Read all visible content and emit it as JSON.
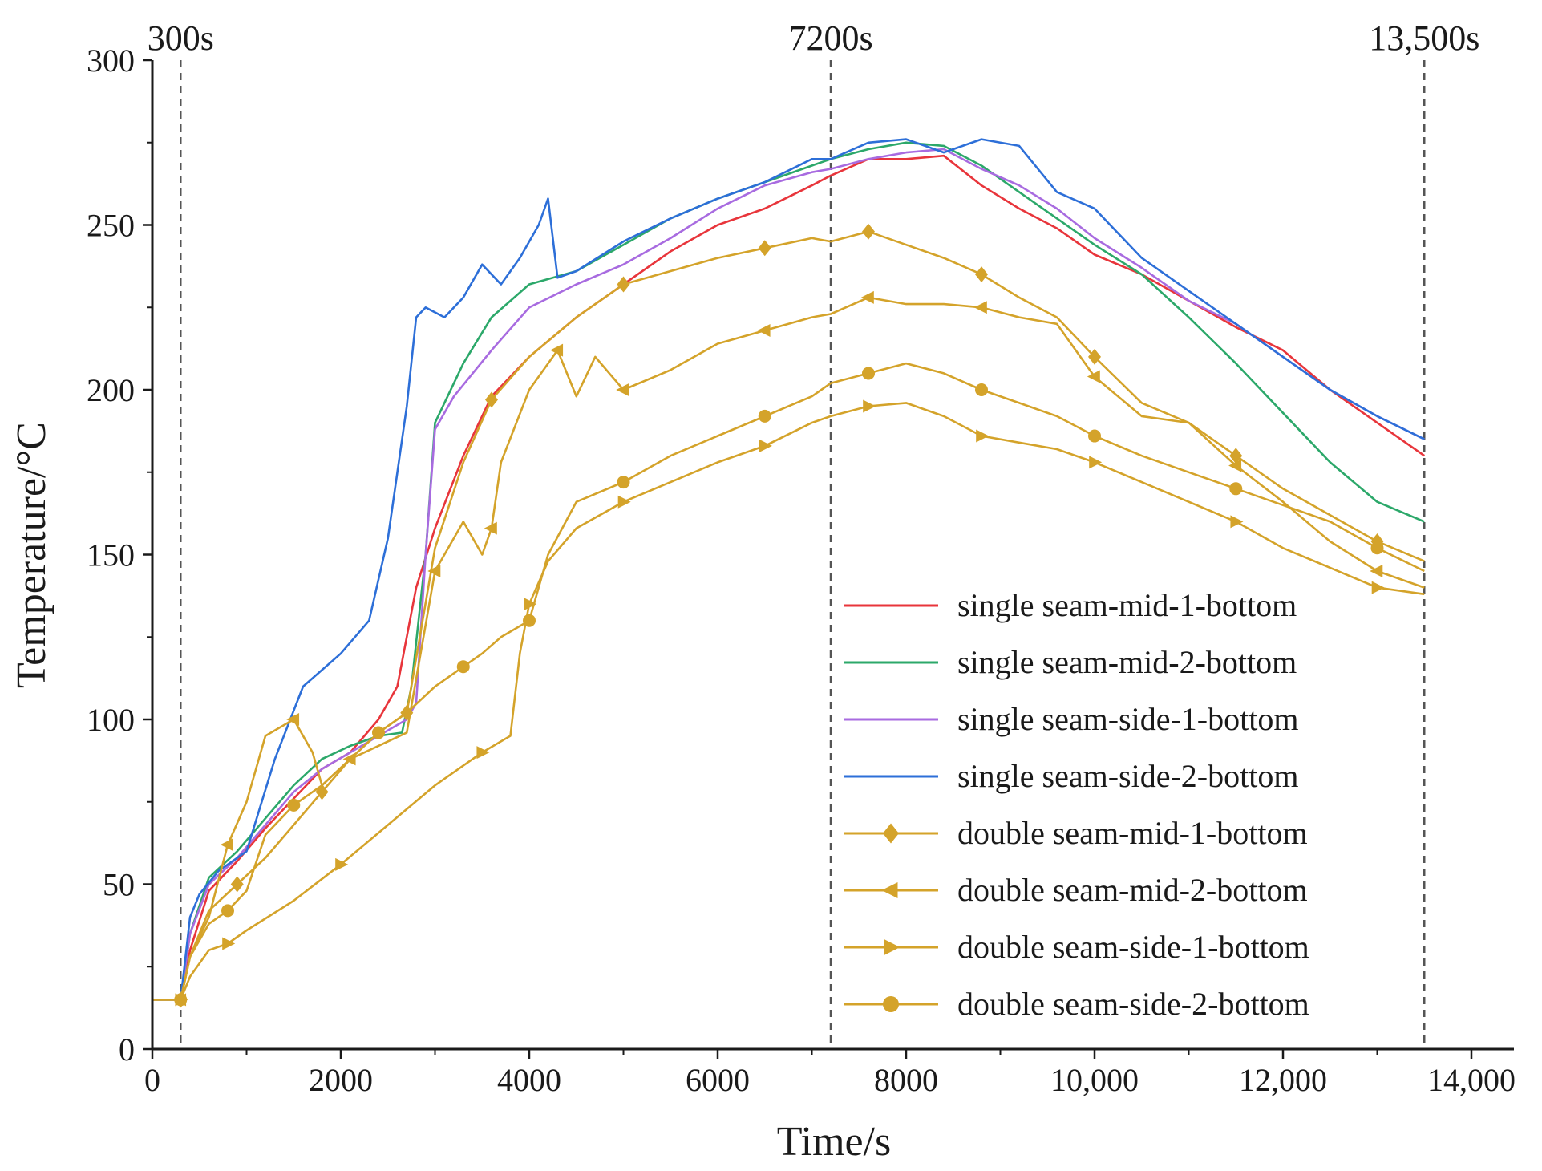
{
  "chart_data": {
    "type": "line",
    "xlabel": "Time/s",
    "ylabel": "Temperature/°C",
    "xlim": [
      0,
      14000
    ],
    "ylim": [
      0,
      300
    ],
    "xticks": [
      0,
      2000,
      4000,
      6000,
      8000,
      10000,
      12000,
      14000
    ],
    "xtick_labels": [
      "0",
      "2000",
      "4000",
      "6000",
      "8000",
      "10,000",
      "12,000",
      "14,000"
    ],
    "yticks": [
      0,
      50,
      100,
      150,
      200,
      250,
      300
    ],
    "ytick_labels": [
      "0",
      "50",
      "100",
      "150",
      "200",
      "250",
      "300"
    ],
    "reference_lines": [
      {
        "x": 300,
        "label": "300s"
      },
      {
        "x": 7200,
        "label": "7200s"
      },
      {
        "x": 13500,
        "label": "13,500s"
      }
    ],
    "legend_position": "bottom-right",
    "series": [
      {
        "name": "single seam-mid-1-bottom",
        "color": "#e8353b",
        "marker": "none",
        "x": [
          0,
          300,
          400,
          600,
          900,
          1200,
          1500,
          1800,
          2100,
          2400,
          2600,
          2800,
          3000,
          3300,
          3600,
          4000,
          4500,
          5000,
          5500,
          6000,
          6500,
          7000,
          7200,
          7600,
          8000,
          8400,
          8800,
          9200,
          9600,
          10000,
          10500,
          11000,
          11500,
          12000,
          12500,
          13000,
          13500
        ],
        "y": [
          15,
          15,
          30,
          48,
          57,
          67,
          76,
          85,
          90,
          100,
          110,
          140,
          158,
          180,
          198,
          210,
          222,
          232,
          242,
          250,
          255,
          262,
          265,
          270,
          270,
          271,
          262,
          255,
          249,
          241,
          235,
          227,
          219,
          212,
          200,
          190,
          180
        ]
      },
      {
        "name": "single seam-mid-2-bottom",
        "color": "#2ca86a",
        "marker": "none",
        "x": [
          0,
          300,
          400,
          600,
          900,
          1200,
          1500,
          1800,
          2100,
          2400,
          2650,
          2750,
          2900,
          3000,
          3300,
          3600,
          4000,
          4500,
          5000,
          5500,
          6000,
          6500,
          7000,
          7200,
          7600,
          8000,
          8400,
          8800,
          9200,
          9600,
          10000,
          10500,
          11000,
          11500,
          12000,
          12500,
          13000,
          13500
        ],
        "y": [
          15,
          15,
          35,
          52,
          60,
          70,
          80,
          88,
          92,
          95,
          96,
          110,
          150,
          190,
          208,
          222,
          232,
          236,
          244,
          252,
          258,
          263,
          268,
          270,
          273,
          275,
          274,
          268,
          260,
          252,
          244,
          235,
          222,
          208,
          193,
          178,
          166,
          160
        ]
      },
      {
        "name": "single seam-side-1-bottom",
        "color": "#a86be0",
        "marker": "none",
        "x": [
          0,
          300,
          400,
          600,
          900,
          1200,
          1500,
          1800,
          2100,
          2400,
          2700,
          2800,
          2900,
          3000,
          3200,
          3600,
          4000,
          4500,
          5000,
          5500,
          6000,
          6500,
          7000,
          7200,
          7600,
          8000,
          8400,
          8800,
          9200,
          9600,
          10000,
          10500,
          11000,
          11500,
          12000,
          12500,
          13000,
          13500
        ],
        "y": [
          15,
          15,
          35,
          50,
          58,
          68,
          78,
          85,
          90,
          95,
          100,
          105,
          150,
          188,
          198,
          212,
          225,
          232,
          238,
          246,
          255,
          262,
          266,
          267,
          270,
          272,
          273,
          267,
          262,
          255,
          246,
          237,
          227,
          220,
          210,
          200,
          192,
          185
        ]
      },
      {
        "name": "single seam-side-2-bottom",
        "color": "#2d6fd8",
        "marker": "none",
        "x": [
          0,
          300,
          400,
          500,
          700,
          1000,
          1300,
          1600,
          2000,
          2300,
          2500,
          2700,
          2800,
          2900,
          3100,
          3300,
          3500,
          3700,
          3900,
          4100,
          4200,
          4300,
          4500,
          5000,
          5500,
          6000,
          6500,
          7000,
          7200,
          7600,
          8000,
          8400,
          8800,
          9200,
          9600,
          10000,
          10500,
          11000,
          11500,
          12000,
          12500,
          13000,
          13500
        ],
        "y": [
          15,
          15,
          40,
          47,
          54,
          60,
          88,
          110,
          120,
          130,
          155,
          195,
          222,
          225,
          222,
          228,
          238,
          232,
          240,
          250,
          258,
          234,
          236,
          245,
          252,
          258,
          263,
          270,
          270,
          275,
          276,
          272,
          276,
          274,
          260,
          255,
          240,
          230,
          220,
          210,
          200,
          192,
          185
        ]
      },
      {
        "name": "double seam-mid-1-bottom",
        "color": "#d4a32a",
        "marker": "diamond",
        "x": [
          0,
          300,
          400,
          600,
          900,
          1200,
          1500,
          1800,
          2100,
          2400,
          2700,
          3000,
          3300,
          3600,
          4000,
          4500,
          5000,
          5500,
          6000,
          6500,
          7000,
          7200,
          7600,
          8000,
          8400,
          8800,
          9200,
          9600,
          10000,
          10500,
          11000,
          11500,
          12000,
          12500,
          13000,
          13500
        ],
        "y": [
          15,
          15,
          28,
          42,
          50,
          58,
          68,
          78,
          88,
          96,
          102,
          152,
          178,
          197,
          210,
          222,
          232,
          236,
          240,
          243,
          246,
          245,
          248,
          244,
          240,
          235,
          228,
          222,
          210,
          196,
          190,
          180,
          170,
          162,
          154,
          148
        ]
      },
      {
        "name": "double seam-mid-2-bottom",
        "color": "#d4a32a",
        "marker": "triangle-left",
        "x": [
          0,
          300,
          400,
          600,
          800,
          1000,
          1200,
          1500,
          1700,
          1800,
          2100,
          2400,
          2700,
          3000,
          3300,
          3500,
          3600,
          3700,
          4000,
          4300,
          4500,
          4700,
          5000,
          5500,
          6000,
          6500,
          7000,
          7200,
          7600,
          8000,
          8400,
          8800,
          9200,
          9600,
          10000,
          10500,
          11000,
          11500,
          12000,
          12500,
          13000,
          13500
        ],
        "y": [
          15,
          15,
          28,
          40,
          62,
          75,
          95,
          100,
          90,
          80,
          88,
          92,
          96,
          145,
          160,
          150,
          158,
          178,
          200,
          212,
          198,
          210,
          200,
          206,
          214,
          218,
          222,
          223,
          228,
          226,
          226,
          225,
          222,
          220,
          204,
          192,
          190,
          177,
          166,
          154,
          145,
          140
        ]
      },
      {
        "name": "double seam-side-1-bottom",
        "color": "#d4a32a",
        "marker": "triangle-right",
        "x": [
          0,
          300,
          400,
          600,
          800,
          1000,
          1500,
          2000,
          2500,
          3000,
          3500,
          3800,
          3900,
          4000,
          4200,
          4500,
          5000,
          5500,
          6000,
          6500,
          7000,
          7200,
          7600,
          8000,
          8400,
          8800,
          9200,
          9600,
          10000,
          10500,
          11000,
          11500,
          12000,
          12500,
          13000,
          13500
        ],
        "y": [
          15,
          15,
          22,
          30,
          32,
          36,
          45,
          56,
          68,
          80,
          90,
          95,
          120,
          135,
          148,
          158,
          166,
          172,
          178,
          183,
          190,
          192,
          195,
          196,
          192,
          186,
          184,
          182,
          178,
          172,
          166,
          160,
          152,
          146,
          140,
          138
        ]
      },
      {
        "name": "double seam-side-2-bottom",
        "color": "#d4a32a",
        "marker": "circle",
        "x": [
          0,
          300,
          400,
          600,
          800,
          1000,
          1200,
          1500,
          1800,
          2100,
          2400,
          2700,
          3000,
          3300,
          3500,
          3700,
          4000,
          4200,
          4500,
          5000,
          5500,
          6000,
          6500,
          7000,
          7200,
          7600,
          8000,
          8400,
          8800,
          9200,
          9600,
          10000,
          10500,
          11000,
          11500,
          12000,
          12500,
          13000,
          13500
        ],
        "y": [
          15,
          15,
          28,
          38,
          42,
          48,
          65,
          74,
          80,
          88,
          96,
          102,
          110,
          116,
          120,
          125,
          130,
          150,
          166,
          172,
          180,
          186,
          192,
          198,
          202,
          205,
          208,
          205,
          200,
          196,
          192,
          186,
          180,
          175,
          170,
          165,
          160,
          152,
          145
        ]
      }
    ]
  }
}
